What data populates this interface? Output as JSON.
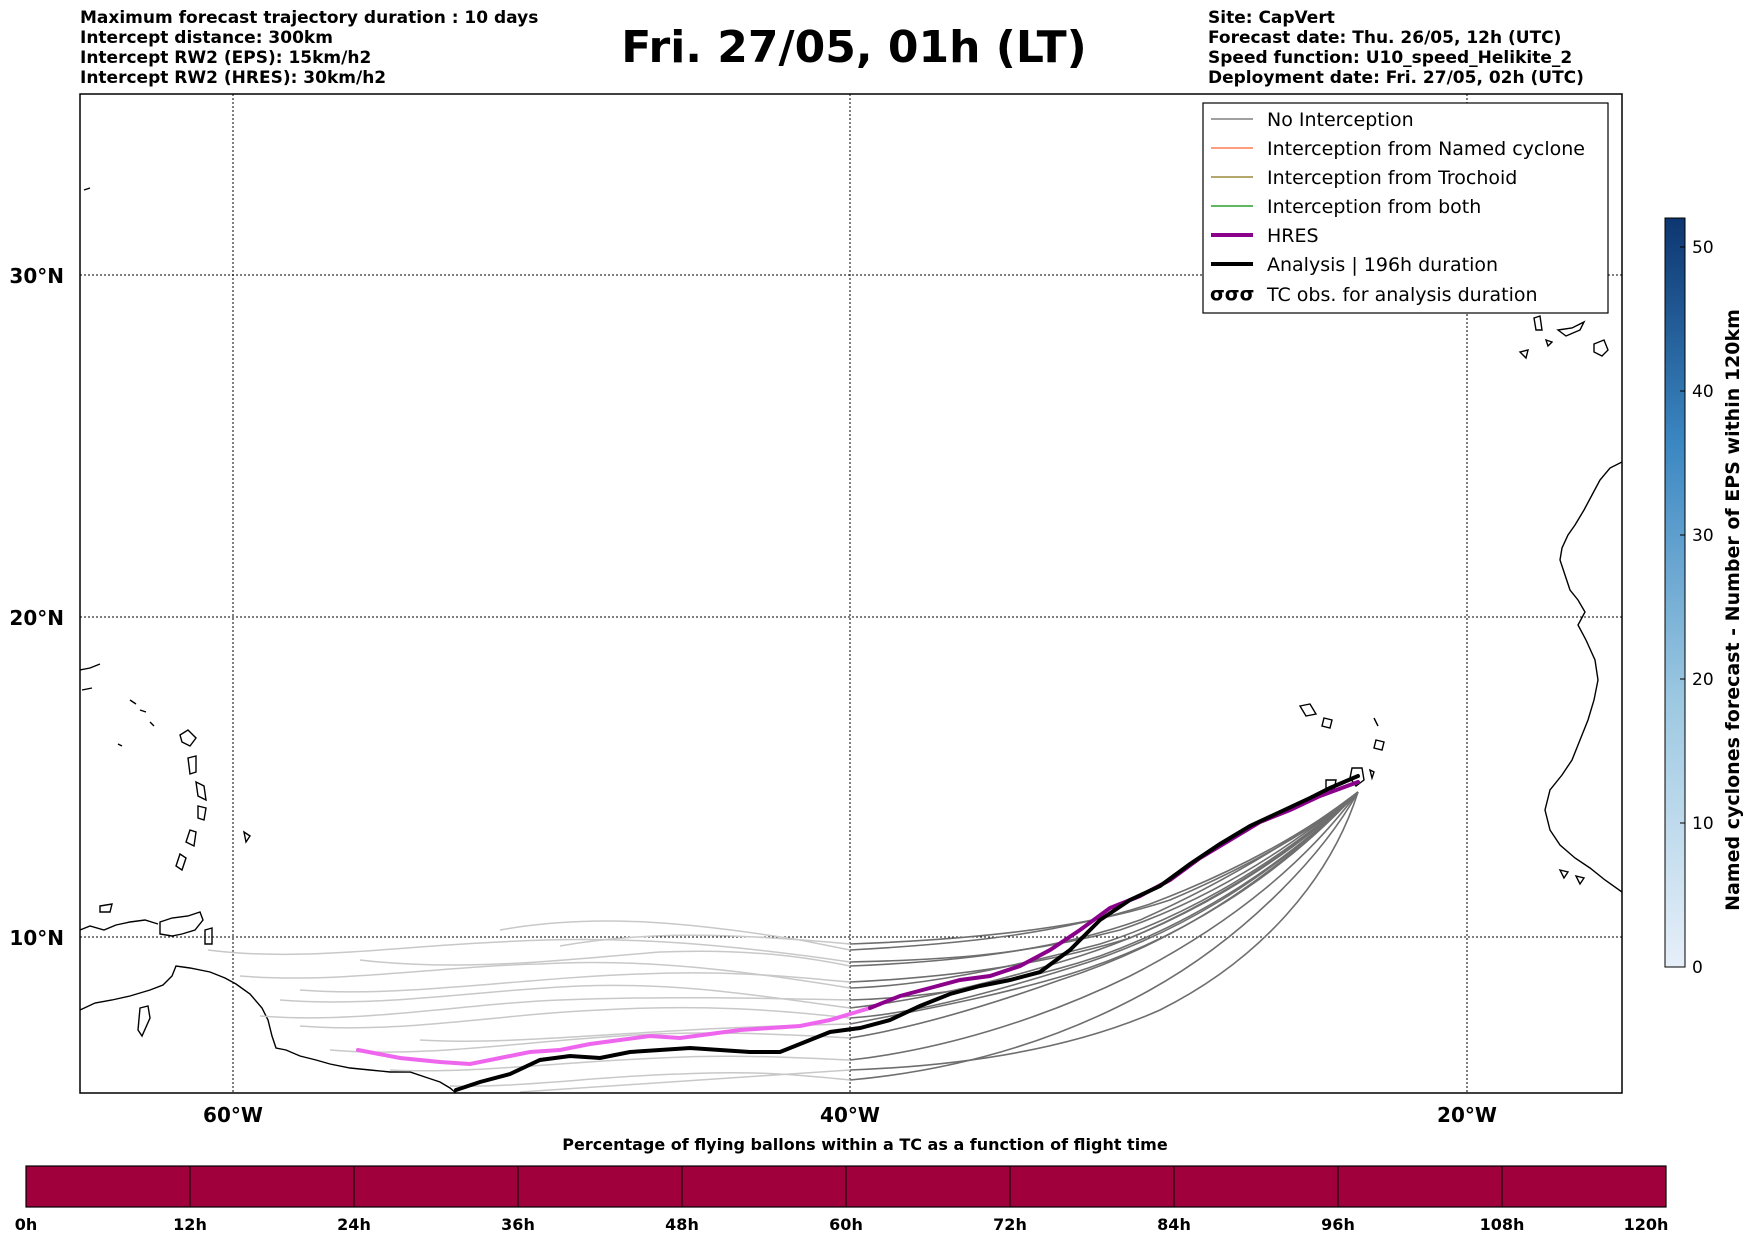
{
  "title": "Fri. 27/05, 01h (LT)",
  "info_left": [
    "Maximum forecast trajectory duration : 10 days",
    "Intercept distance: 300km",
    "Intercept RW2 (EPS):  15km/h2",
    "Intercept RW2 (HRES): 30km/h2"
  ],
  "info_right": [
    "Site: CapVert",
    "Forecast date: Thu. 26/05, 12h (UTC)",
    "Speed function: U10_speed_Helikite_2",
    "Deployment date: Fri. 27/05, 02h (UTC)"
  ],
  "map": {
    "lon_labels": [
      "60°W",
      "40°W",
      "20°W"
    ],
    "lat_labels": [
      "30°N",
      "20°N",
      "10°N"
    ],
    "gridlines": true
  },
  "legend": [
    {
      "label": "No Interception",
      "color": "#808080",
      "style": "thin"
    },
    {
      "label": "Interception from Named cyclone",
      "color": "#ff7f50",
      "style": "thin"
    },
    {
      "label": "Interception from Trochoid",
      "color": "#9a8a3a",
      "style": "thin"
    },
    {
      "label": "Interception from both",
      "color": "#2ca02c",
      "style": "thin"
    },
    {
      "label": "HRES",
      "color": "#8b008b",
      "style": "thick"
    },
    {
      "label": "Analysis | 196h duration",
      "color": "#000000",
      "style": "thick"
    },
    {
      "label": "TC obs. for analysis duration",
      "color": "#000000",
      "style": "symbol",
      "symbol": "σσσ"
    }
  ],
  "colorbar_right": {
    "label": "Named cyclones forecast - Number of EPS within 120km",
    "ticks": [
      "0",
      "10",
      "20",
      "30",
      "40",
      "50"
    ],
    "color_low": "#e6eff9",
    "color_high": "#0d3670"
  },
  "colorbar_bottom": {
    "title": "Percentage of flying ballons within a TC as a function of flight time",
    "ticks": [
      "0h",
      "12h",
      "24h",
      "36h",
      "48h",
      "60h",
      "72h",
      "84h",
      "96h",
      "108h",
      "120h"
    ],
    "fill_color": "#a0003c"
  }
}
